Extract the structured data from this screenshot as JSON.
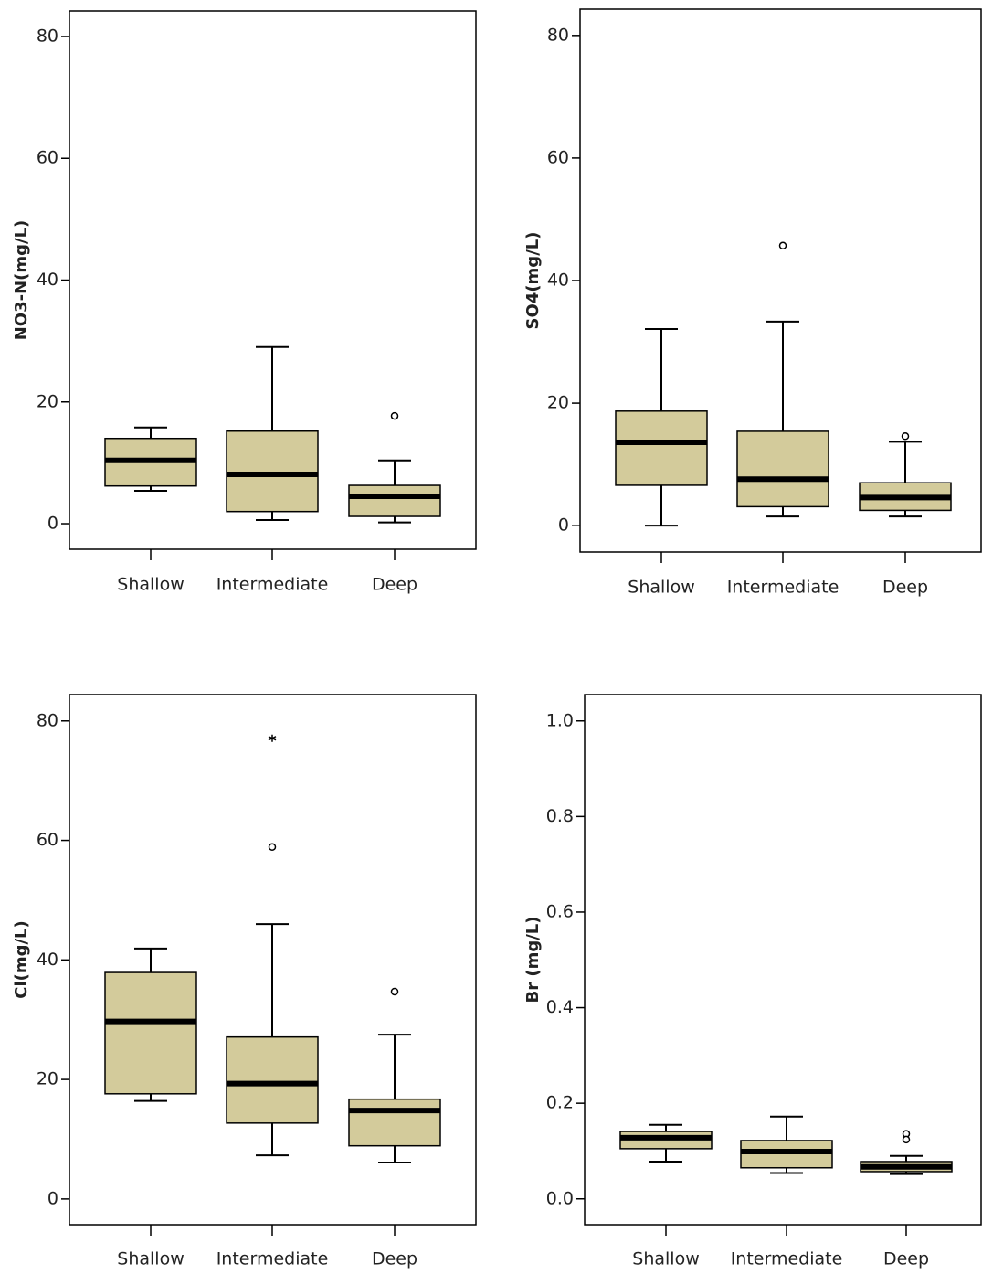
{
  "chart_data": [
    {
      "type": "box",
      "ylabel": "NO3-N(mg/L)",
      "categories": [
        "Shallow",
        "Intermediate",
        "Deep"
      ],
      "color": "#d3cb9b",
      "ylim": [
        -4.2,
        84.2
      ],
      "yticks": [
        0,
        20,
        40,
        60,
        80
      ],
      "boxes": [
        {
          "whislo": 5.4,
          "q1": 6.2,
          "med": 10.4,
          "q3": 14.0,
          "whishi": 15.8,
          "fliers": [],
          "extremes": []
        },
        {
          "whislo": 0.6,
          "q1": 2.0,
          "med": 8.1,
          "q3": 15.2,
          "whishi": 29.0,
          "fliers": [],
          "extremes": []
        },
        {
          "whislo": 0.2,
          "q1": 1.2,
          "med": 4.5,
          "q3": 6.3,
          "whishi": 10.4,
          "fliers": [
            17.7
          ],
          "extremes": []
        }
      ]
    },
    {
      "type": "box",
      "ylabel": "SO4(mg/L)",
      "categories": [
        "Shallow",
        "Intermediate",
        "Deep"
      ],
      "color": "#d3cb9b",
      "ylim": [
        -4.3,
        84.3
      ],
      "yticks": [
        0,
        20,
        40,
        60,
        80
      ],
      "boxes": [
        {
          "whislo": 0,
          "q1": 6.6,
          "med": 13.6,
          "q3": 18.7,
          "whishi": 32.1,
          "fliers": [],
          "extremes": []
        },
        {
          "whislo": 1.5,
          "q1": 3.1,
          "med": 7.6,
          "q3": 15.4,
          "whishi": 33.3,
          "fliers": [
            45.7
          ],
          "extremes": []
        },
        {
          "whislo": 1.5,
          "q1": 2.5,
          "med": 4.6,
          "q3": 7.0,
          "whishi": 13.7,
          "fliers": [
            14.6
          ],
          "extremes": []
        }
      ]
    },
    {
      "type": "box",
      "ylabel": "Cl(mg/L)",
      "categories": [
        "Shallow",
        "Intermediate",
        "Deep"
      ],
      "color": "#d3cb9b",
      "ylim": [
        -4.3,
        84.4
      ],
      "yticks": [
        0,
        20,
        40,
        60,
        80
      ],
      "boxes": [
        {
          "whislo": 16.4,
          "q1": 17.6,
          "med": 29.7,
          "q3": 37.9,
          "whishi": 41.9,
          "fliers": [],
          "extremes": []
        },
        {
          "whislo": 7.3,
          "q1": 12.7,
          "med": 19.3,
          "q3": 27.1,
          "whishi": 46.0,
          "fliers": [
            58.9
          ],
          "extremes": [
            77.1
          ]
        },
        {
          "whislo": 6.1,
          "q1": 8.9,
          "med": 14.8,
          "q3": 16.7,
          "whishi": 27.5,
          "fliers": [
            34.7
          ],
          "extremes": []
        }
      ]
    },
    {
      "type": "box",
      "ylabel": "Br (mg/L)",
      "categories": [
        "Shallow",
        "Intermediate",
        "Deep"
      ],
      "color": "#d3cb9b",
      "ylim": [
        -0.054,
        1.055
      ],
      "yticks": [
        {
          "value": 0,
          "label": "0.0"
        },
        0.2,
        0.4,
        0.6,
        0.8,
        {
          "value": 1,
          "label": "1.0"
        }
      ],
      "boxes": [
        {
          "whislo": 0.078,
          "q1": 0.105,
          "med": 0.128,
          "q3": 0.141,
          "whishi": 0.155,
          "fliers": [],
          "extremes": []
        },
        {
          "whislo": 0.054,
          "q1": 0.065,
          "med": 0.099,
          "q3": 0.122,
          "whishi": 0.172,
          "fliers": [],
          "extremes": []
        },
        {
          "whislo": 0.052,
          "q1": 0.057,
          "med": 0.067,
          "q3": 0.078,
          "whishi": 0.09,
          "fliers": [
            0.136,
            0.124
          ],
          "extremes": []
        }
      ]
    }
  ]
}
